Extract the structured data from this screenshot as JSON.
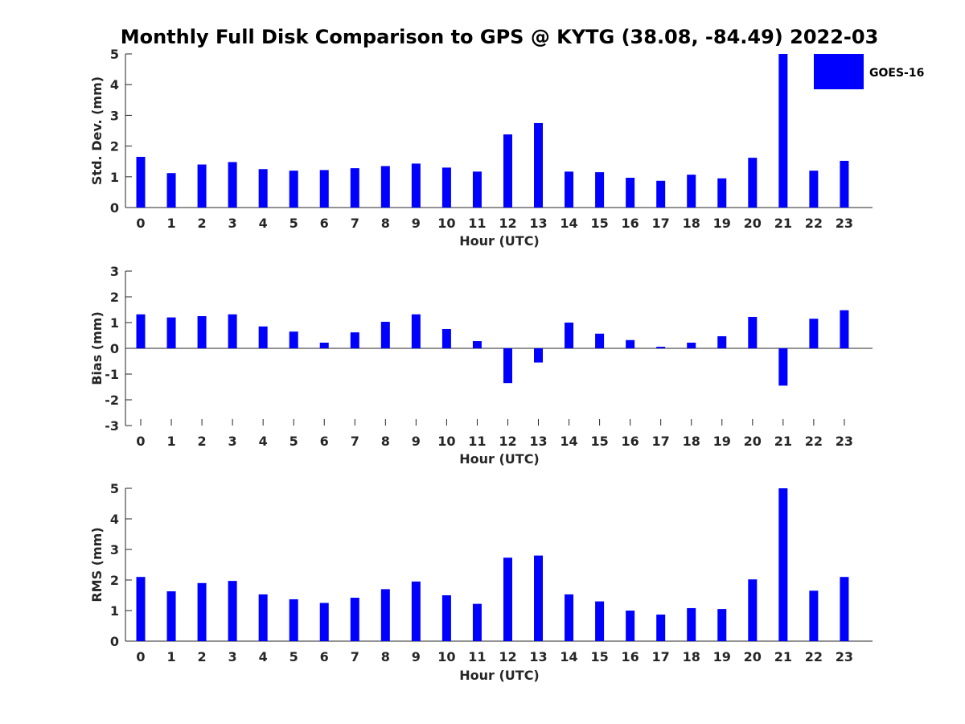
{
  "figure": {
    "title": "Monthly Full Disk Comparison to GPS @ KYTG (38.08, -84.49) 2022-03"
  },
  "legend": {
    "label": "GOES-16",
    "color": "#0000ff",
    "placement": "top-right"
  },
  "chart_data": [
    {
      "type": "bar",
      "xlabel": "Hour (UTC)",
      "ylabel": "Std. Dev. (mm)",
      "ylim": [
        0,
        5
      ],
      "yticks": [
        "0",
        "1",
        "2",
        "3",
        "4",
        "5"
      ],
      "categories": [
        "0",
        "1",
        "2",
        "3",
        "4",
        "5",
        "6",
        "7",
        "8",
        "9",
        "10",
        "11",
        "12",
        "13",
        "14",
        "15",
        "16",
        "17",
        "18",
        "19",
        "20",
        "21",
        "22",
        "23"
      ],
      "series": [
        {
          "name": "GOES-16",
          "color": "#0000ff",
          "values": [
            1.65,
            1.12,
            1.4,
            1.48,
            1.25,
            1.2,
            1.22,
            1.28,
            1.35,
            1.43,
            1.3,
            1.17,
            2.38,
            2.75,
            1.17,
            1.15,
            0.97,
            0.87,
            1.07,
            0.95,
            1.62,
            5.0,
            1.2,
            1.52
          ]
        }
      ]
    },
    {
      "type": "bar",
      "xlabel": "Hour (UTC)",
      "ylabel": "Bias (mm)",
      "ylim": [
        -3,
        3
      ],
      "yticks": [
        "-3",
        "-2",
        "-1",
        "0",
        "1",
        "2",
        "3"
      ],
      "categories": [
        "0",
        "1",
        "2",
        "3",
        "4",
        "5",
        "6",
        "7",
        "8",
        "9",
        "10",
        "11",
        "12",
        "13",
        "14",
        "15",
        "16",
        "17",
        "18",
        "19",
        "20",
        "21",
        "22",
        "23"
      ],
      "series": [
        {
          "name": "GOES-16",
          "color": "#0000ff",
          "values": [
            1.32,
            1.2,
            1.25,
            1.32,
            0.85,
            0.65,
            0.22,
            0.62,
            1.03,
            1.32,
            0.75,
            0.28,
            -1.35,
            -0.55,
            1.0,
            0.57,
            0.32,
            0.06,
            0.22,
            0.47,
            1.22,
            -1.45,
            1.15,
            1.48
          ]
        }
      ]
    },
    {
      "type": "bar",
      "xlabel": "Hour (UTC)",
      "ylabel": "RMS (mm)",
      "ylim": [
        0,
        5
      ],
      "yticks": [
        "0",
        "1",
        "2",
        "3",
        "4",
        "5"
      ],
      "categories": [
        "0",
        "1",
        "2",
        "3",
        "4",
        "5",
        "6",
        "7",
        "8",
        "9",
        "10",
        "11",
        "12",
        "13",
        "14",
        "15",
        "16",
        "17",
        "18",
        "19",
        "20",
        "21",
        "22",
        "23"
      ],
      "series": [
        {
          "name": "GOES-16",
          "color": "#0000ff",
          "values": [
            2.1,
            1.63,
            1.9,
            1.97,
            1.53,
            1.37,
            1.25,
            1.42,
            1.7,
            1.95,
            1.5,
            1.22,
            2.73,
            2.8,
            1.53,
            1.3,
            1.0,
            0.87,
            1.08,
            1.05,
            2.02,
            5.0,
            1.65,
            2.1
          ]
        }
      ]
    }
  ]
}
